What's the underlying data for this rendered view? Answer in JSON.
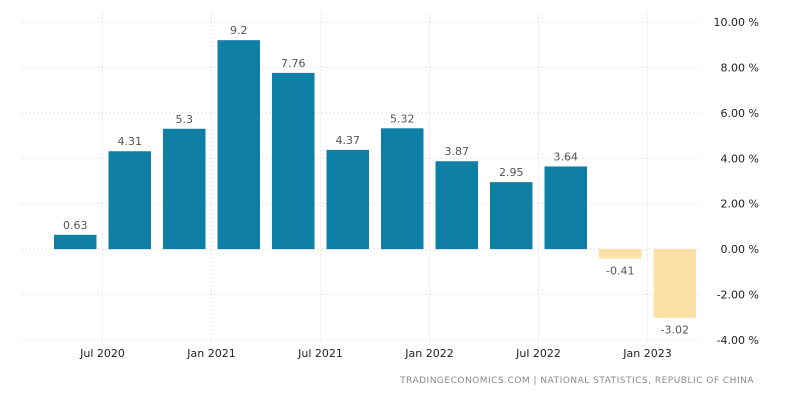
{
  "chart_data": {
    "type": "bar",
    "categories": [
      "Q2 2020",
      "Q3 2020",
      "Q4 2020",
      "Q1 2021",
      "Q2 2021",
      "Q3 2021",
      "Q4 2021",
      "Q1 2022",
      "Q2 2022",
      "Q3 2022",
      "Q4 2022",
      "Q1 2023"
    ],
    "values": [
      0.63,
      4.31,
      5.3,
      9.2,
      7.76,
      4.37,
      5.32,
      3.87,
      2.95,
      3.64,
      -0.41,
      -3.02
    ],
    "data_labels": [
      "0.63",
      "4.31",
      "5.3",
      "9.2",
      "7.76",
      "4.37",
      "5.32",
      "3.87",
      "2.95",
      "3.64",
      "-0.41",
      "-3.02"
    ],
    "ylim": [
      -4,
      10
    ],
    "y_ticks": [
      10,
      8,
      6,
      4,
      2,
      0,
      -2,
      -4
    ],
    "y_tick_labels": [
      "10.00 %",
      "8.00 %",
      "6.00 %",
      "4.00 %",
      "2.00 %",
      "0.00 %",
      "-2.00 %",
      "-4.00 %"
    ],
    "x_tick_labels": [
      "Jul 2020",
      "Jan 2021",
      "Jul 2021",
      "Jan 2022",
      "Jul 2022",
      "Jan 2023"
    ],
    "x_tick_positions": [
      0.5,
      2.5,
      4.5,
      6.5,
      8.5,
      10.5
    ],
    "grid": true,
    "y_axis_position": "right",
    "colors": {
      "positive": "#0f7fa6",
      "negative": "#fde0a3",
      "grid": "#d4d4d4"
    },
    "source": "TRADINGECONOMICS.COM  |  NATIONAL STATISTICS, REPUBLIC OF CHINA"
  }
}
